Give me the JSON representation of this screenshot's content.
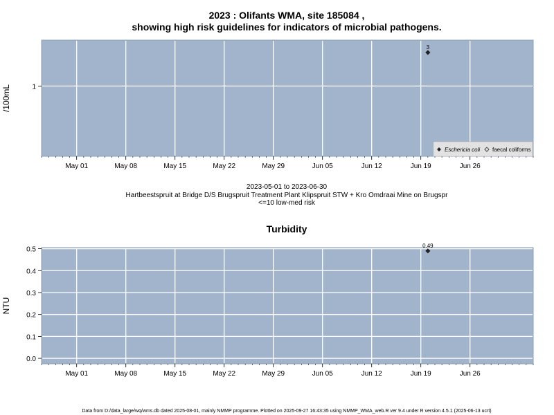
{
  "chart_data": [
    {
      "type": "scatter",
      "title_line1": "2023 : Olifants WMA, site 185084 ,",
      "title_line2": "showing high risk guidelines for indicators of microbial pathogens.",
      "ylabel": "/100mL",
      "y_scale": "log",
      "ylim": [
        0.1,
        4.5
      ],
      "yticks": [
        {
          "value": 1,
          "label": "1"
        }
      ],
      "xlim": [
        "2023-04-26",
        "2023-07-05"
      ],
      "xticks": [
        {
          "date": "2023-05-01",
          "label": "May 01"
        },
        {
          "date": "2023-05-08",
          "label": "May 08"
        },
        {
          "date": "2023-05-15",
          "label": "May 15"
        },
        {
          "date": "2023-05-22",
          "label": "May 22"
        },
        {
          "date": "2023-05-29",
          "label": "May 29"
        },
        {
          "date": "2023-06-05",
          "label": "Jun 05"
        },
        {
          "date": "2023-06-12",
          "label": "Jun 12"
        },
        {
          "date": "2023-06-19",
          "label": "Jun 19"
        },
        {
          "date": "2023-06-26",
          "label": "Jun 26"
        }
      ],
      "grid": true,
      "background_color": "#a2b4cb",
      "legend_position": "bottom-right",
      "series": [
        {
          "name": "Eschericia coli",
          "marker": "filled-diamond",
          "points": [
            {
              "x": "2023-06-20",
              "y": 3,
              "label": "3"
            }
          ]
        },
        {
          "name": "faecal coliforms",
          "marker": "open-diamond",
          "points": []
        }
      ],
      "subtitle_lines": [
        "2023-05-01 to 2023-06-30",
        "Hartbeestspruit at Bridge D/S Brugspruit Treatment Plant Klipspruit STW + Kro Omdraai Mine on Brugspr",
        "<=10 low-med risk"
      ]
    },
    {
      "type": "scatter",
      "title": "Turbidity",
      "ylabel": "NTU",
      "ylim": [
        -0.025,
        0.505
      ],
      "yticks": [
        {
          "value": 0.0,
          "label": "0.0"
        },
        {
          "value": 0.1,
          "label": "0.1"
        },
        {
          "value": 0.2,
          "label": "0.2"
        },
        {
          "value": 0.3,
          "label": "0.3"
        },
        {
          "value": 0.4,
          "label": "0.4"
        },
        {
          "value": 0.5,
          "label": "0.5"
        }
      ],
      "xlim": [
        "2023-04-26",
        "2023-07-05"
      ],
      "xticks": [
        {
          "date": "2023-05-01",
          "label": "May 01"
        },
        {
          "date": "2023-05-08",
          "label": "May 08"
        },
        {
          "date": "2023-05-15",
          "label": "May 15"
        },
        {
          "date": "2023-05-22",
          "label": "May 22"
        },
        {
          "date": "2023-05-29",
          "label": "May 29"
        },
        {
          "date": "2023-06-05",
          "label": "Jun 05"
        },
        {
          "date": "2023-06-12",
          "label": "Jun 12"
        },
        {
          "date": "2023-06-19",
          "label": "Jun 19"
        },
        {
          "date": "2023-06-26",
          "label": "Jun 26"
        }
      ],
      "grid": true,
      "background_color": "#a2b4cb",
      "series": [
        {
          "marker": "filled-diamond",
          "points": [
            {
              "x": "2023-06-20",
              "y": 0.49,
              "label": "0.49"
            }
          ]
        }
      ]
    }
  ],
  "footer": "Data from D:/data_large/wq/wms.db dated 2025-08-01, mainly NMMP programme. Plotted on 2025-09-27 16:43:35 using NMMP_WMA_web.R ver 9.4 under R version 4.5.1 (2025-06-13 ucrt)"
}
